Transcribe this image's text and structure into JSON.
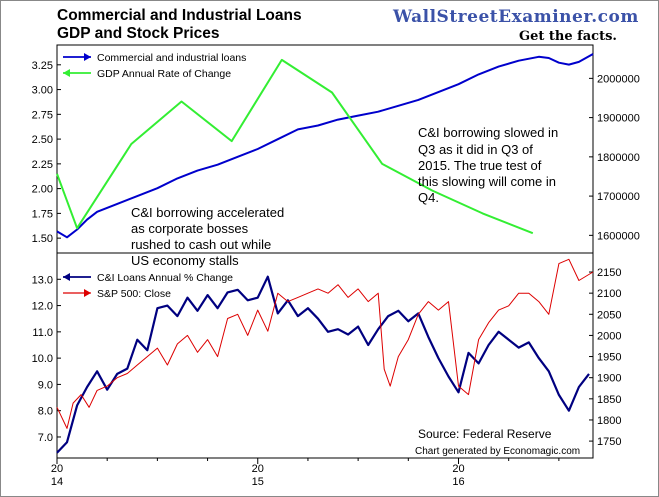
{
  "title": {
    "line1": "Commercial and Industrial Loans",
    "line2": "GDP and Stock Prices"
  },
  "brand": {
    "name": "WallStreetExaminer.com",
    "tagline": "Get the facts."
  },
  "colors": {
    "loans": "#0000cc",
    "gdp": "#33ee33",
    "ci_pct": "#000080",
    "sp500": "#dd0000",
    "brand": "#3b52a8"
  },
  "annotations": {
    "note_right": [
      "C&I borrowing slowed in",
      "Q3 as it did in Q3 of",
      "2015.  The true test of",
      "this slowing will come in",
      "Q4."
    ],
    "note_left": [
      "C&I borrowing accelerated",
      "as corporate bosses",
      "rushed to cash out while",
      "US economy stalls"
    ],
    "source": "Source: Federal Reserve",
    "generated": "Chart generated by Economagic.com"
  },
  "x_axis": {
    "ticks": [
      {
        "t": 2014.0,
        "top": "20",
        "bottom": "14"
      },
      {
        "t": 2015.0,
        "top": "20",
        "bottom": "15"
      },
      {
        "t": 2016.0,
        "top": "20",
        "bottom": "16"
      }
    ],
    "range": [
      2014.0,
      2016.67
    ]
  },
  "chart_data": [
    {
      "type": "line",
      "panel": "top",
      "series": [
        {
          "name": "Commercial and industrial loans",
          "axis": "right",
          "x": [
            2014.0,
            2014.05,
            2014.1,
            2014.15,
            2014.2,
            2014.3,
            2014.4,
            2014.5,
            2014.6,
            2014.7,
            2014.8,
            2014.9,
            2015.0,
            2015.1,
            2015.2,
            2015.3,
            2015.4,
            2015.5,
            2015.6,
            2015.7,
            2015.8,
            2015.9,
            2016.0,
            2016.1,
            2016.2,
            2016.3,
            2016.4,
            2016.45,
            2016.5,
            2016.55,
            2016.6,
            2016.67
          ],
          "values": [
            1610000,
            1595000,
            1615000,
            1640000,
            1660000,
            1680000,
            1700000,
            1720000,
            1745000,
            1765000,
            1780000,
            1800000,
            1820000,
            1845000,
            1870000,
            1880000,
            1895000,
            1905000,
            1915000,
            1930000,
            1945000,
            1965000,
            1985000,
            2010000,
            2030000,
            2045000,
            2055000,
            2052000,
            2040000,
            2035000,
            2042000,
            2062000
          ]
        },
        {
          "name": "GDP Annual Rate of Change",
          "axis": "left",
          "x": [
            2014.0,
            2014.1,
            2014.37,
            2014.62,
            2014.87,
            2015.12,
            2015.37,
            2015.62,
            2015.87,
            2016.12,
            2016.37
          ],
          "values": [
            2.15,
            1.6,
            2.45,
            2.88,
            2.48,
            3.3,
            2.97,
            2.25,
            1.98,
            1.75,
            1.55
          ]
        }
      ],
      "left_axis": {
        "range": [
          1.35,
          3.45
        ],
        "ticks": [
          "3.25",
          "3.00",
          "2.75",
          "2.50",
          "2.25",
          "2.00",
          "1.75",
          "1.50"
        ]
      },
      "right_axis": {
        "range": [
          1555000,
          2085000
        ],
        "ticks": [
          "2000000",
          "1900000",
          "1800000",
          "1700000",
          "1600000"
        ]
      },
      "legend": [
        "Commercial and industrial loans",
        "GDP Annual Rate of Change"
      ]
    },
    {
      "type": "line",
      "panel": "bottom",
      "series": [
        {
          "name": "C&I Loans Annual % Change",
          "axis": "left",
          "x": [
            2014.0,
            2014.05,
            2014.1,
            2014.15,
            2014.2,
            2014.25,
            2014.3,
            2014.35,
            2014.4,
            2014.45,
            2014.5,
            2014.55,
            2014.6,
            2014.65,
            2014.7,
            2014.75,
            2014.8,
            2014.85,
            2014.9,
            2014.95,
            2015.0,
            2015.05,
            2015.1,
            2015.15,
            2015.2,
            2015.25,
            2015.3,
            2015.35,
            2015.4,
            2015.45,
            2015.5,
            2015.55,
            2015.6,
            2015.65,
            2015.7,
            2015.75,
            2015.8,
            2015.85,
            2015.9,
            2015.95,
            2016.0,
            2016.05,
            2016.1,
            2016.15,
            2016.2,
            2016.25,
            2016.3,
            2016.35,
            2016.4,
            2016.45,
            2016.5,
            2016.55,
            2016.6,
            2016.65
          ],
          "values": [
            6.4,
            6.8,
            8.2,
            8.9,
            9.5,
            8.8,
            9.4,
            9.6,
            10.7,
            10.3,
            11.9,
            12.0,
            11.6,
            12.3,
            11.8,
            12.4,
            11.9,
            12.5,
            12.6,
            12.2,
            12.3,
            13.1,
            11.7,
            12.2,
            11.6,
            11.9,
            11.5,
            11.0,
            11.1,
            10.9,
            11.2,
            10.5,
            11.1,
            11.6,
            11.8,
            11.4,
            11.7,
            10.8,
            10.0,
            9.3,
            8.7,
            10.2,
            9.8,
            10.5,
            11.0,
            10.7,
            10.4,
            10.6,
            10.0,
            9.5,
            8.6,
            8.0,
            8.9,
            9.4
          ]
        },
        {
          "name": "S&P 500: Close",
          "axis": "right",
          "x": [
            2014.0,
            2014.05,
            2014.08,
            2014.12,
            2014.16,
            2014.2,
            2014.25,
            2014.3,
            2014.35,
            2014.4,
            2014.45,
            2014.5,
            2014.55,
            2014.6,
            2014.65,
            2014.7,
            2014.75,
            2014.8,
            2014.85,
            2014.9,
            2014.95,
            2015.0,
            2015.05,
            2015.1,
            2015.15,
            2015.2,
            2015.25,
            2015.3,
            2015.35,
            2015.4,
            2015.45,
            2015.5,
            2015.55,
            2015.6,
            2015.63,
            2015.66,
            2015.7,
            2015.75,
            2015.8,
            2015.85,
            2015.9,
            2015.95,
            2016.0,
            2016.05,
            2016.1,
            2016.15,
            2016.2,
            2016.25,
            2016.3,
            2016.35,
            2016.4,
            2016.45,
            2016.5,
            2016.55,
            2016.6,
            2016.67
          ],
          "values": [
            1830,
            1780,
            1840,
            1860,
            1830,
            1870,
            1880,
            1900,
            1910,
            1930,
            1950,
            1970,
            1930,
            1980,
            2000,
            1960,
            1990,
            1950,
            2040,
            2050,
            2000,
            2060,
            2010,
            2100,
            2080,
            2090,
            2100,
            2110,
            2100,
            2120,
            2090,
            2110,
            2080,
            2100,
            1920,
            1880,
            1950,
            1990,
            2050,
            2080,
            2060,
            2080,
            1880,
            1860,
            1990,
            2030,
            2060,
            2070,
            2100,
            2100,
            2080,
            2050,
            2170,
            2180,
            2130,
            2150
          ]
        }
      ],
      "left_axis": {
        "range": [
          6.2,
          14.0
        ],
        "ticks": [
          "13.0",
          "12.0",
          "11.0",
          "10.0",
          "9.0",
          "8.0",
          "7.0"
        ]
      },
      "right_axis": {
        "range": [
          1710,
          2195
        ],
        "ticks": [
          "2150",
          "2100",
          "2050",
          "2000",
          "1950",
          "1900",
          "1850",
          "1800",
          "1750"
        ]
      },
      "legend": [
        "C&I Loans Annual % Change",
        "S&P 500: Close"
      ]
    }
  ]
}
